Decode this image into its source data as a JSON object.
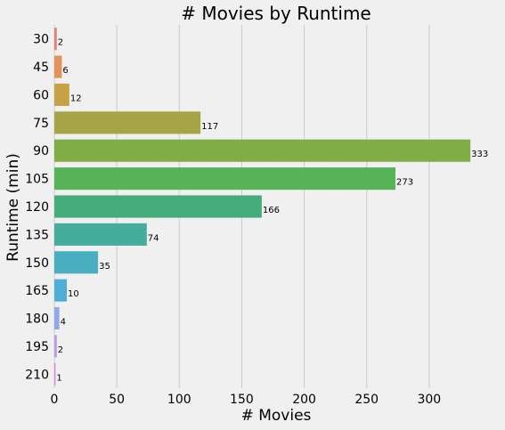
{
  "chart_data": {
    "type": "bar",
    "orientation": "horizontal",
    "title": "# Movies by Runtime",
    "xlabel": "# Movies",
    "ylabel": "Runtime (min)",
    "categories": [
      "30",
      "45",
      "60",
      "75",
      "90",
      "105",
      "120",
      "135",
      "150",
      "165",
      "180",
      "195",
      "210"
    ],
    "values": [
      2,
      6,
      12,
      117,
      333,
      273,
      166,
      74,
      35,
      10,
      4,
      2,
      1
    ],
    "data_labels": [
      "2",
      "6",
      "12",
      "117",
      "333",
      "273",
      "166",
      "74",
      "35",
      "10",
      "4",
      "2",
      "1"
    ],
    "x_ticks": [
      "0",
      "50",
      "100",
      "150",
      "200",
      "250",
      "300"
    ],
    "xlim": [
      0,
      350
    ],
    "grid": "vertical",
    "legend": "none",
    "colors": [
      "#e8807a",
      "#e3925c",
      "#c7a245",
      "#a6a545",
      "#80ad45",
      "#57b357",
      "#45ad7c",
      "#46ad9d",
      "#48aec0",
      "#4faed6",
      "#8fa8e6",
      "#b99be6",
      "#d98fe0"
    ],
    "background": "#f0f0f0"
  }
}
